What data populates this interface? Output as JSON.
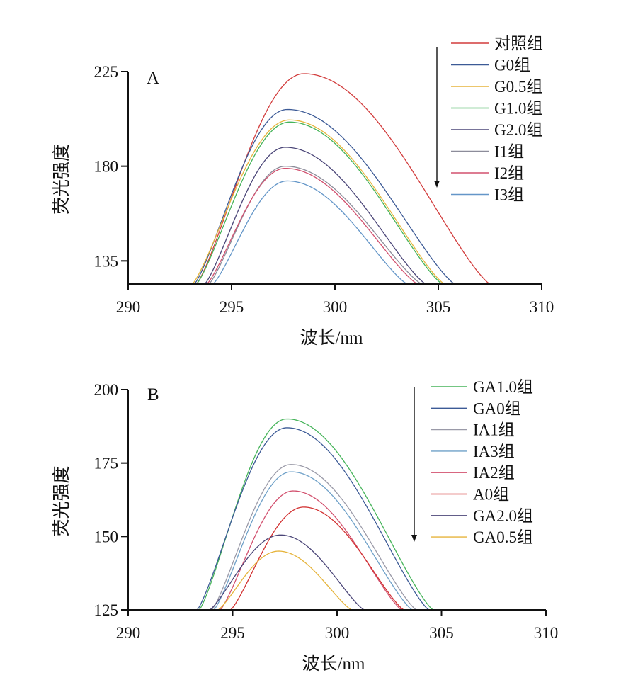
{
  "chart_data": [
    {
      "panel_label": "A",
      "type": "line",
      "xlabel": "波长/nm",
      "ylabel": "荧光强度",
      "xlim": [
        290,
        310
      ],
      "ylim": [
        124,
        225
      ],
      "xticks": [
        290,
        295,
        300,
        305,
        310
      ],
      "yticks": [
        135,
        180,
        225
      ],
      "grid": false,
      "legend_position": "top-right",
      "legend_arrow": "down",
      "series": [
        {
          "name": "对照组",
          "color": "#d23c3c",
          "peak_x": 298.5,
          "peak_y": 224,
          "x_end": 307.5,
          "x_start": 293.3
        },
        {
          "name": "G0组",
          "color": "#3c5a96",
          "peak_x": 297.7,
          "peak_y": 207,
          "x_end": 305.8,
          "x_start": 293.2
        },
        {
          "name": "G0.5组",
          "color": "#e6b43c",
          "peak_x": 297.8,
          "peak_y": 202,
          "x_end": 305.3,
          "x_start": 293.1
        },
        {
          "name": "G1.0组",
          "color": "#46b45a",
          "peak_x": 297.8,
          "peak_y": 201,
          "x_end": 305.2,
          "x_start": 293.3
        },
        {
          "name": "G2.0组",
          "color": "#4b4678",
          "peak_x": 297.6,
          "peak_y": 189,
          "x_end": 304.4,
          "x_start": 293.7
        },
        {
          "name": "I1组",
          "color": "#8c8c9a",
          "peak_x": 297.6,
          "peak_y": 180,
          "x_end": 304.2,
          "x_start": 293.9
        },
        {
          "name": "I2组",
          "color": "#d2506e",
          "peak_x": 297.6,
          "peak_y": 179,
          "x_end": 304.0,
          "x_start": 293.8
        },
        {
          "name": "I3组",
          "color": "#6496c8",
          "peak_x": 297.7,
          "peak_y": 173,
          "x_end": 303.5,
          "x_start": 294.1
        }
      ]
    },
    {
      "panel_label": "B",
      "type": "line",
      "xlabel": "波长/nm",
      "ylabel": "荧光强度",
      "xlim": [
        290,
        310
      ],
      "ylim": [
        125,
        200
      ],
      "xticks": [
        290,
        295,
        300,
        305,
        310
      ],
      "yticks": [
        125,
        150,
        175,
        200
      ],
      "grid": false,
      "legend_position": "top-right",
      "legend_arrow": "down",
      "series": [
        {
          "name": "GA1.0组",
          "color": "#46b45a",
          "peak_x": 297.6,
          "peak_y": 190,
          "x_end": 304.6,
          "x_start": 293.4
        },
        {
          "name": "GA0组",
          "color": "#3c5a96",
          "peak_x": 297.6,
          "peak_y": 187,
          "x_end": 304.4,
          "x_start": 293.3
        },
        {
          "name": "IA1组",
          "color": "#9a9aa8",
          "peak_x": 297.8,
          "peak_y": 174.5,
          "x_end": 303.8,
          "x_start": 294.0
        },
        {
          "name": "IA3组",
          "color": "#6ea0c8",
          "peak_x": 297.8,
          "peak_y": 172,
          "x_end": 303.6,
          "x_start": 294.1
        },
        {
          "name": "IA2组",
          "color": "#d2506e",
          "peak_x": 297.9,
          "peak_y": 165.5,
          "x_end": 303.1,
          "x_start": 294.4
        },
        {
          "name": "A0组",
          "color": "#d23232",
          "peak_x": 298.4,
          "peak_y": 160,
          "x_end": 303.2,
          "x_start": 294.9
        },
        {
          "name": "GA2.0组",
          "color": "#4b4678",
          "peak_x": 297.3,
          "peak_y": 150.5,
          "x_end": 301.3,
          "x_start": 293.9
        },
        {
          "name": "GA0.5组",
          "color": "#e6b43c",
          "peak_x": 297.2,
          "peak_y": 145,
          "x_end": 300.7,
          "x_start": 294.3
        }
      ]
    }
  ]
}
